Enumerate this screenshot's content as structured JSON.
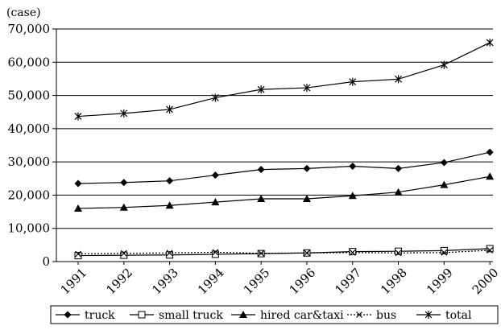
{
  "chart_data": {
    "type": "line",
    "unit_label": "(case)",
    "categories": [
      "1991",
      "1992",
      "1993",
      "1994",
      "1995",
      "1996",
      "1997",
      "1998",
      "1999",
      "2000"
    ],
    "ylim": [
      0,
      70000
    ],
    "y_ticks": [
      0,
      10000,
      20000,
      30000,
      40000,
      50000,
      60000,
      70000
    ],
    "y_tick_labels": [
      "0",
      "10,000",
      "20,000",
      "30,000",
      "40,000",
      "50,000",
      "60,000",
      "70,000"
    ],
    "grid": true,
    "legend_position": "bottom",
    "series": [
      {
        "name": "truck",
        "marker": "diamond-filled",
        "line": "solid",
        "values": [
          23500,
          23800,
          24300,
          26000,
          27700,
          28000,
          28700,
          28000,
          29800,
          32900
        ]
      },
      {
        "name": "small truck",
        "marker": "square-open",
        "line": "solid",
        "values": [
          1800,
          1900,
          2000,
          2200,
          2400,
          2600,
          3000,
          3100,
          3300,
          3900
        ]
      },
      {
        "name": "hired car&taxi",
        "marker": "triangle-filled",
        "line": "solid",
        "values": [
          16000,
          16300,
          16900,
          17900,
          18900,
          18900,
          19800,
          20900,
          23100,
          25600
        ]
      },
      {
        "name": "bus",
        "marker": "x",
        "line": "dotted",
        "values": [
          2300,
          2500,
          2600,
          2800,
          2500,
          2600,
          2700,
          2600,
          2700,
          3400
        ]
      },
      {
        "name": "total",
        "marker": "asterisk",
        "line": "solid",
        "values": [
          43700,
          44600,
          45800,
          49300,
          51800,
          52300,
          54100,
          54900,
          59200,
          65900
        ]
      }
    ]
  }
}
